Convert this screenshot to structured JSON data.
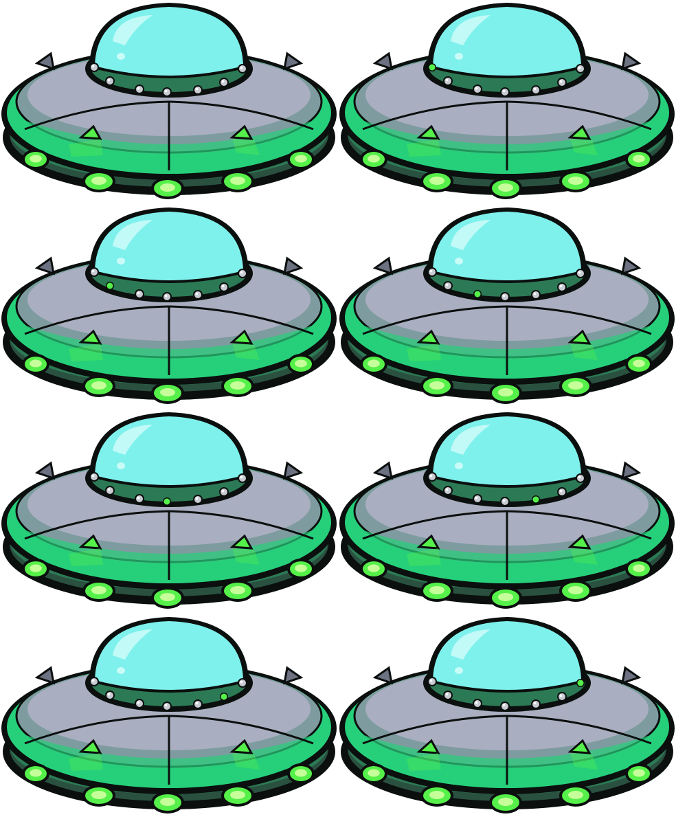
{
  "sprite_sheet": {
    "columns": 2,
    "rows": 4,
    "colors": {
      "outline": "#0b0f0e",
      "dome": "#7ff1ec",
      "dome_highlight": "#c9fbf8",
      "rim_green": "#26d07a",
      "rim_dark": "#1b6a45",
      "hull_grey": "#8e93a6",
      "hull_grey_light": "#a9aec0",
      "band_dark": "#2a5040",
      "ring_green": "#2c7a55",
      "bolt": "#c9cdd3",
      "light_green": "#56f04a",
      "light_glow": "#c6ff9a",
      "spike": "#6d7282"
    },
    "frames": [
      {
        "id": "frame-1",
        "lit_bolt": -1
      },
      {
        "id": "frame-2",
        "lit_bolt": 0
      },
      {
        "id": "frame-3",
        "lit_bolt": 1
      },
      {
        "id": "frame-4",
        "lit_bolt": 2
      },
      {
        "id": "frame-5",
        "lit_bolt": 3
      },
      {
        "id": "frame-6",
        "lit_bolt": 4
      },
      {
        "id": "frame-7",
        "lit_bolt": 5
      },
      {
        "id": "frame-8",
        "lit_bolt": 6
      }
    ],
    "icon": "ufo-sprite"
  }
}
